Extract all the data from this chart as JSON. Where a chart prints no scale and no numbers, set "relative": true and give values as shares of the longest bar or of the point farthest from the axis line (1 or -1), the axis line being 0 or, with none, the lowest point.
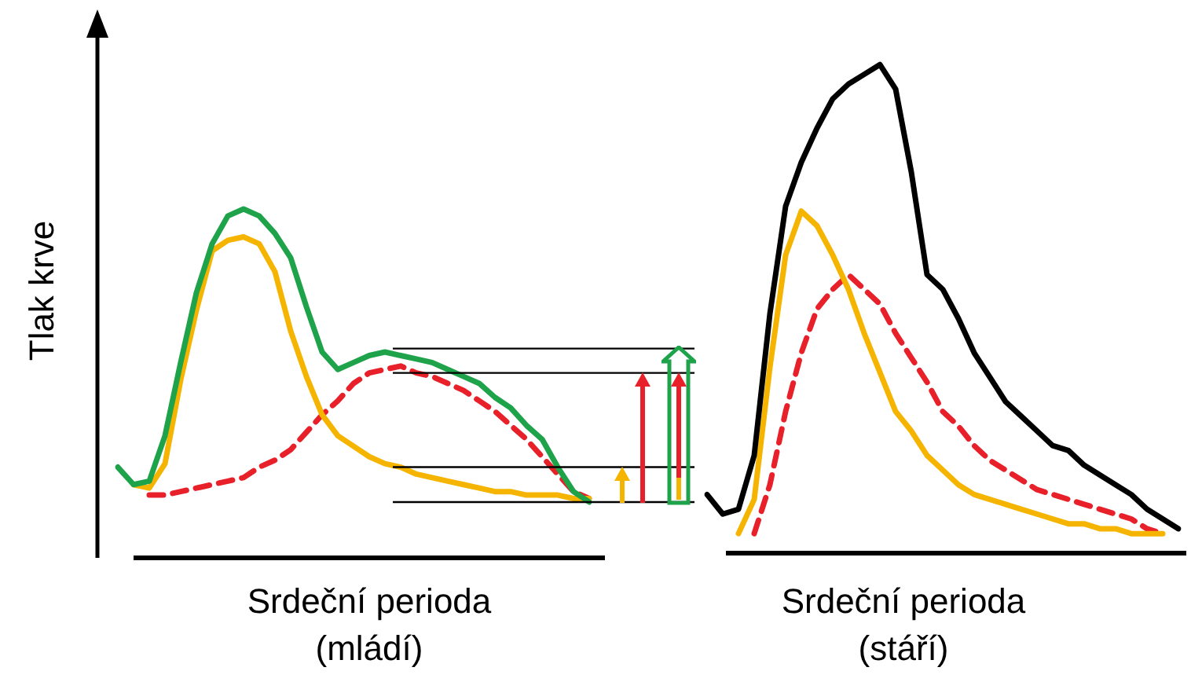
{
  "chart_data": [
    {
      "type": "line",
      "relative": true,
      "ylabel": "Tlak krve",
      "xlabel": "Srdeční perioda (mládí)",
      "tick_labels": false,
      "legend": false,
      "grid": false,
      "marker": "none",
      "ref_lines": [
        {
          "axis": "y",
          "value": 0.6,
          "color": "#000000"
        },
        {
          "axis": "y",
          "value": 0.53,
          "color": "#000000"
        },
        {
          "axis": "y",
          "value": 0.26,
          "color": "#000000"
        },
        {
          "axis": "y",
          "value": 0.16,
          "color": "#000000"
        }
      ],
      "categories": [
        null,
        null,
        null,
        null,
        null,
        null,
        null,
        null,
        null,
        null,
        null,
        null,
        null,
        null,
        null,
        null,
        null,
        null,
        null,
        null,
        null,
        null,
        null,
        null,
        null,
        null,
        null,
        null,
        null,
        null,
        null
      ],
      "series": [
        {
          "color": "#1fa34a",
          "values": [
            0.26,
            0.21,
            0.22,
            0.35,
            0.56,
            0.76,
            0.9,
            0.98,
            1,
            0.98,
            0.93,
            0.86,
            0.72,
            0.59,
            0.54,
            0.56,
            0.58,
            0.59,
            0.58,
            0.57,
            0.56,
            0.54,
            0.52,
            0.5,
            0.46,
            0.43,
            0.38,
            0.34,
            0.26,
            0.19,
            0.16
          ]
        },
        {
          "color": "#f5b400",
          "values": [
            null,
            0.21,
            0.2,
            0.27,
            0.51,
            0.71,
            0.88,
            0.91,
            0.92,
            0.9,
            0.82,
            0.65,
            0.52,
            0.41,
            0.35,
            0.32,
            0.29,
            0.27,
            0.26,
            0.24,
            0.23,
            0.22,
            0.21,
            0.2,
            0.19,
            0.19,
            0.18,
            0.18,
            0.18,
            0.17,
            0.17
          ]
        },
        {
          "color": "#e8202a",
          "line_style": "dashed",
          "values": [
            null,
            null,
            0.18,
            0.18,
            0.19,
            0.2,
            0.21,
            0.22,
            0.23,
            0.26,
            0.28,
            0.31,
            0.36,
            0.41,
            0.45,
            0.5,
            0.53,
            0.54,
            0.55,
            0.53,
            0.52,
            0.5,
            0.48,
            0.45,
            0.42,
            0.38,
            0.34,
            0.29,
            0.24,
            0.19,
            0.17
          ]
        }
      ]
    },
    {
      "type": "line",
      "relative": true,
      "xlabel": "Srdeční perioda (stáří)",
      "tick_labels": false,
      "legend": false,
      "grid": false,
      "marker": "none",
      "categories": [
        null,
        null,
        null,
        null,
        null,
        null,
        null,
        null,
        null,
        null,
        null,
        null,
        null,
        null,
        null,
        null,
        null,
        null,
        null,
        null,
        null,
        null,
        null,
        null,
        null,
        null,
        null,
        null,
        null,
        null,
        null
      ],
      "series": [
        {
          "color": "#000000",
          "values": [
            0.12,
            0.08,
            0.09,
            0.2,
            0.49,
            0.71,
            0.8,
            0.87,
            0.93,
            0.96,
            0.98,
            1,
            0.95,
            0.78,
            0.57,
            0.54,
            0.48,
            0.41,
            0.36,
            0.31,
            0.28,
            0.25,
            0.22,
            0.21,
            0.18,
            0.16,
            0.14,
            0.12,
            0.09,
            0.07,
            0.05
          ]
        },
        {
          "color": "#f5b400",
          "values": [
            null,
            null,
            0.04,
            0.11,
            0.38,
            0.61,
            0.7,
            0.67,
            0.61,
            0.54,
            0.45,
            0.37,
            0.29,
            0.25,
            0.2,
            0.17,
            0.14,
            0.12,
            0.11,
            0.1,
            0.09,
            0.08,
            0.07,
            0.06,
            0.06,
            0.05,
            0.05,
            0.04,
            0.04,
            0.04,
            null
          ]
        },
        {
          "color": "#e8202a",
          "line_style": "dashed",
          "values": [
            null,
            null,
            null,
            0.04,
            0.14,
            0.29,
            0.41,
            0.5,
            0.54,
            0.57,
            0.54,
            0.51,
            0.45,
            0.4,
            0.35,
            0.29,
            0.26,
            0.22,
            0.19,
            0.17,
            0.15,
            0.13,
            0.12,
            0.11,
            0.1,
            0.09,
            0.08,
            0.07,
            0.05,
            0.04,
            null
          ]
        }
      ]
    }
  ]
}
